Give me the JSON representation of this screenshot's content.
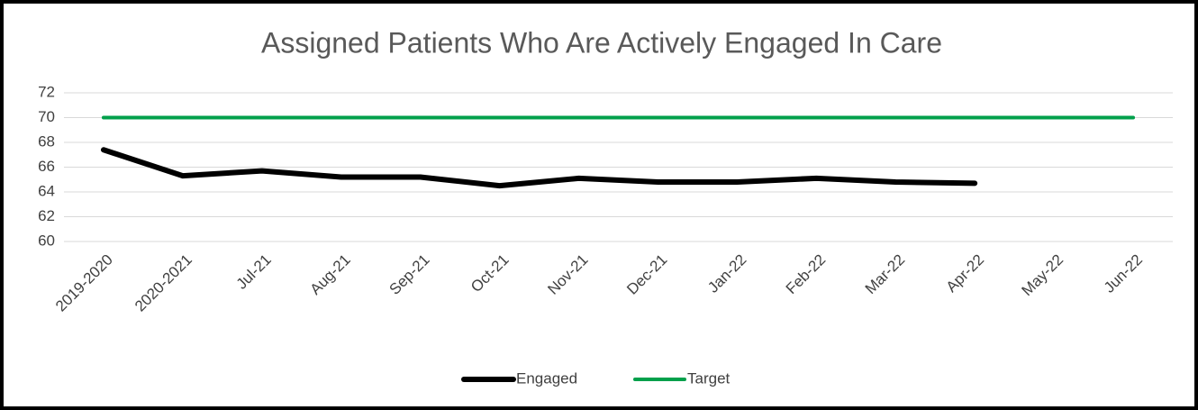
{
  "chart_data": {
    "type": "line",
    "title": "Assigned Patients Who Are Actively Engaged In Care",
    "categories": [
      "2019-2020",
      "2020-2021",
      "Jul-21",
      "Aug-21",
      "Sep-21",
      "Oct-21",
      "Nov-21",
      "Dec-21",
      "Jan-22",
      "Feb-22",
      "Mar-22",
      "Apr-22",
      "May-22",
      "Jun-22"
    ],
    "series": [
      {
        "name": "Engaged",
        "color": "#000000",
        "values": [
          67.4,
          65.3,
          65.7,
          65.2,
          65.2,
          64.5,
          65.1,
          64.8,
          64.8,
          65.1,
          64.8,
          64.7,
          null,
          null
        ]
      },
      {
        "name": "Target",
        "color": "#00a04b",
        "values": [
          70,
          70,
          70,
          70,
          70,
          70,
          70,
          70,
          70,
          70,
          70,
          70,
          70,
          70
        ]
      }
    ],
    "ylim": [
      60,
      72
    ],
    "yticks": [
      60,
      62,
      64,
      66,
      68,
      70,
      72
    ],
    "grid": true,
    "legend": "bottom"
  }
}
